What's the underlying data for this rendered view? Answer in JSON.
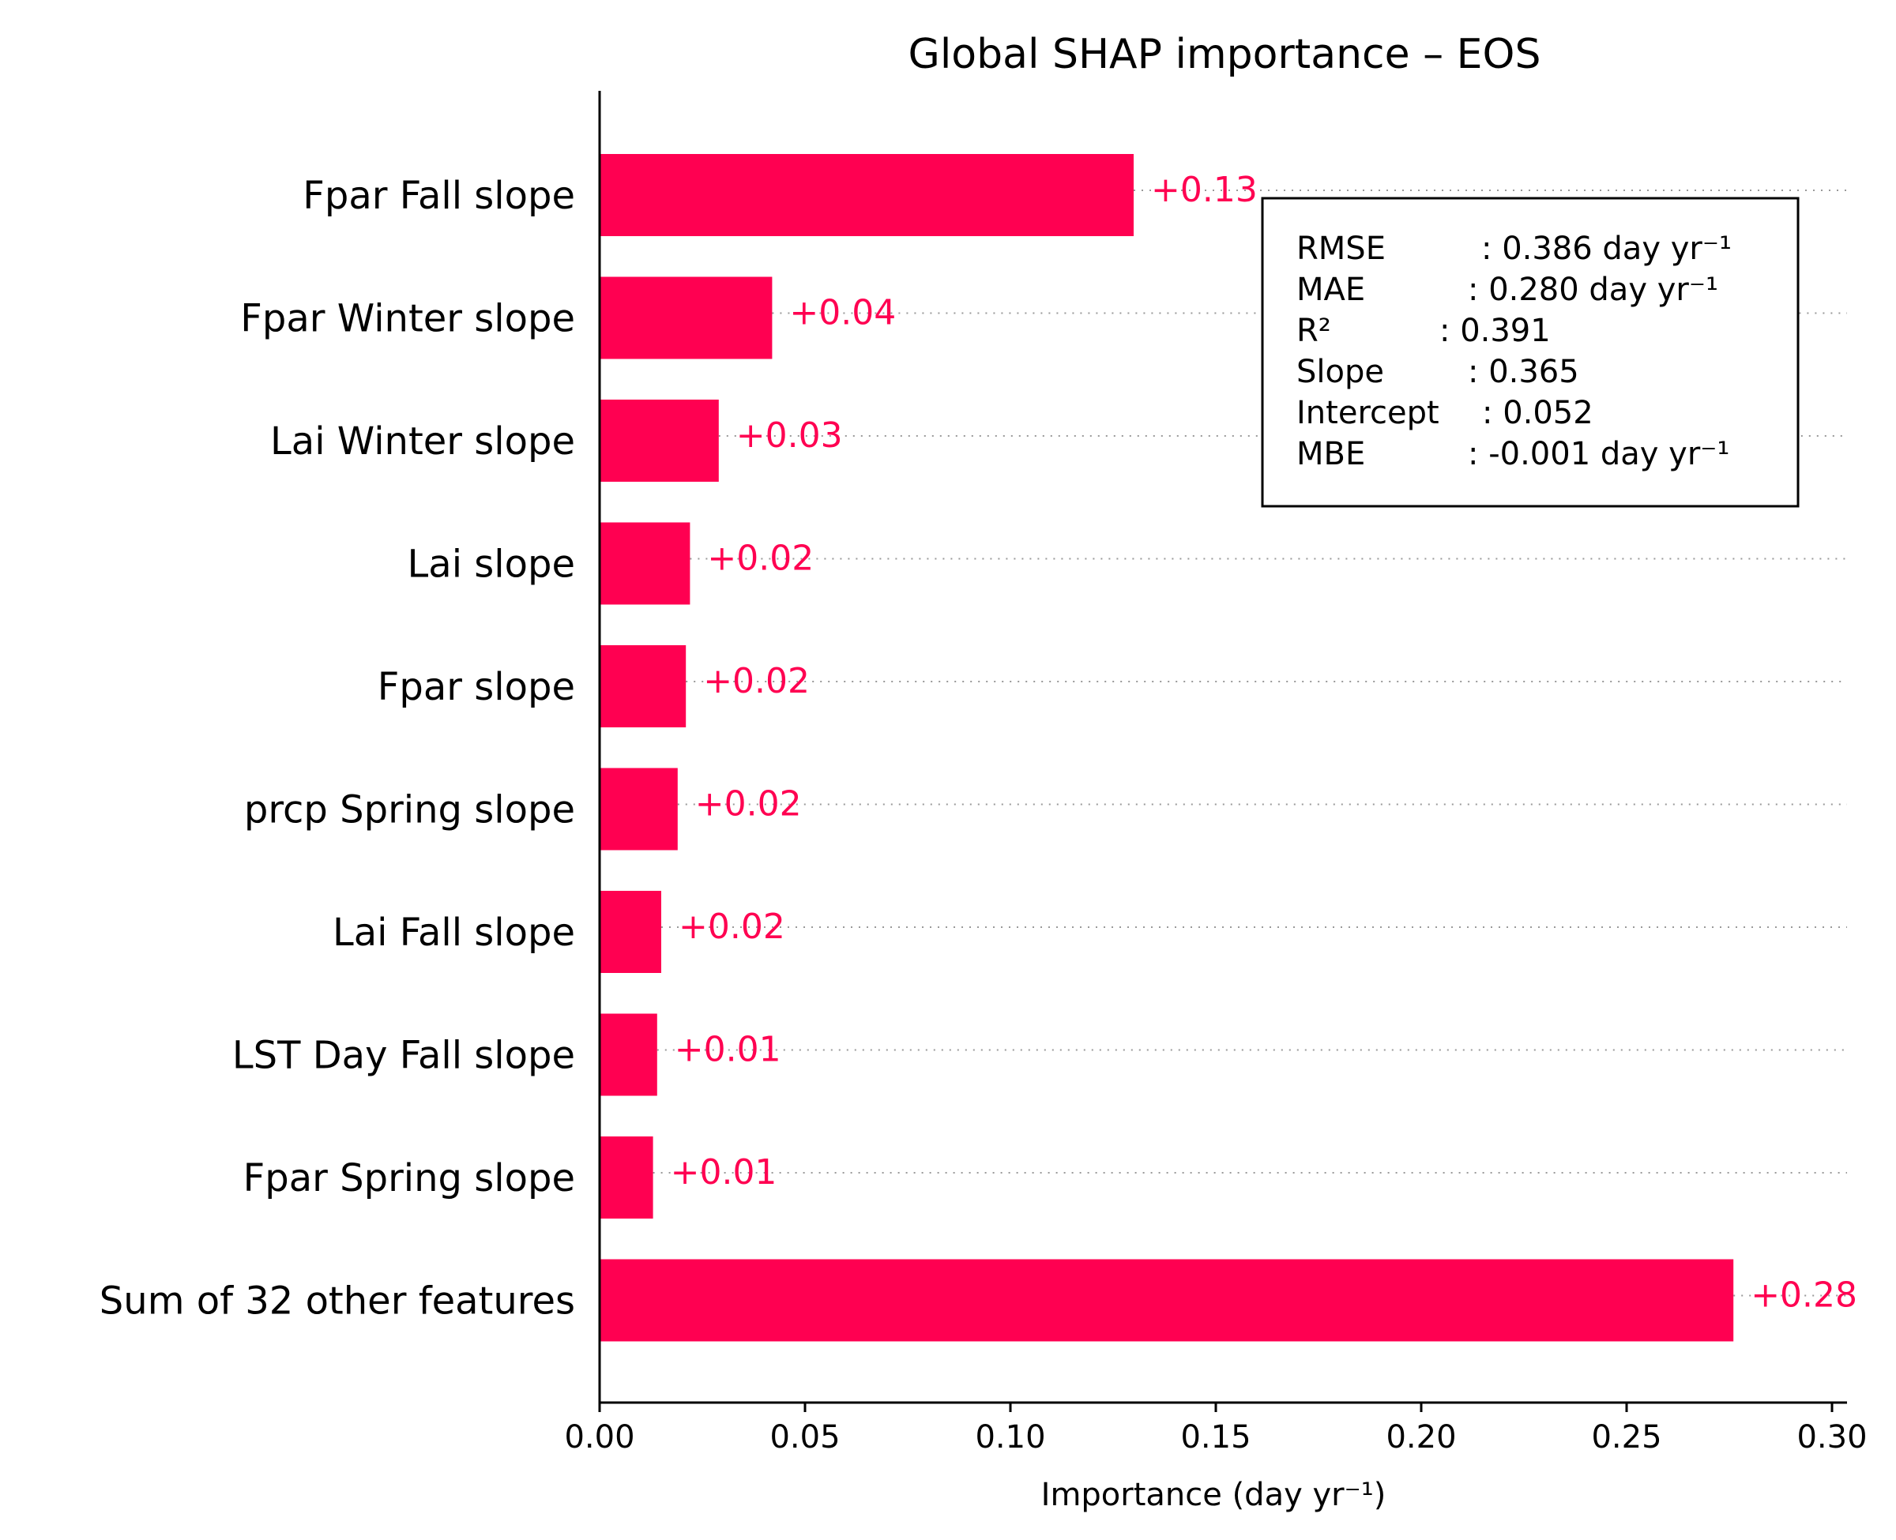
{
  "chart_data": {
    "type": "bar",
    "orientation": "horizontal",
    "title": "Global SHAP importance – EOS",
    "xlabel": "Importance (day yr⁻¹)",
    "ylabel": "",
    "xlim": [
      0,
      0.305
    ],
    "xticks": [
      0.0,
      0.05,
      0.1,
      0.15,
      0.2,
      0.25,
      0.3
    ],
    "xtick_labels": [
      "0.00",
      "0.05",
      "0.10",
      "0.15",
      "0.20",
      "0.25",
      "0.30"
    ],
    "categories": [
      "Fpar Fall slope",
      "Fpar Winter slope",
      "Lai Winter slope",
      "Lai slope",
      "Fpar slope",
      "prcp Spring slope",
      "Lai Fall slope",
      "LST Day Fall slope",
      "Fpar Spring slope",
      "Sum of 32 other features"
    ],
    "values": [
      0.13,
      0.042,
      0.029,
      0.022,
      0.021,
      0.019,
      0.015,
      0.014,
      0.013,
      0.276
    ],
    "value_labels": [
      "+0.13",
      "+0.04",
      "+0.03",
      "+0.02",
      "+0.02",
      "+0.02",
      "+0.02",
      "+0.01",
      "+0.01",
      "+0.28"
    ],
    "grid": "dotted horizontal guide lines per bar",
    "legend": "none",
    "bar_color": "#ff0051",
    "annotation_box": {
      "placement": "top-right",
      "lines": [
        {
          "label": "RMSE",
          "value": ": 0.386 day yr⁻¹"
        },
        {
          "label": "MAE",
          "value": ": 0.280 day yr⁻¹"
        },
        {
          "label": "R²",
          "value": ": 0.391"
        },
        {
          "label": "Slope",
          "value": ": 0.365"
        },
        {
          "label": "Intercept",
          "value": ": 0.052"
        },
        {
          "label": "MBE",
          "value": ": -0.001 day yr⁻¹"
        }
      ]
    }
  }
}
